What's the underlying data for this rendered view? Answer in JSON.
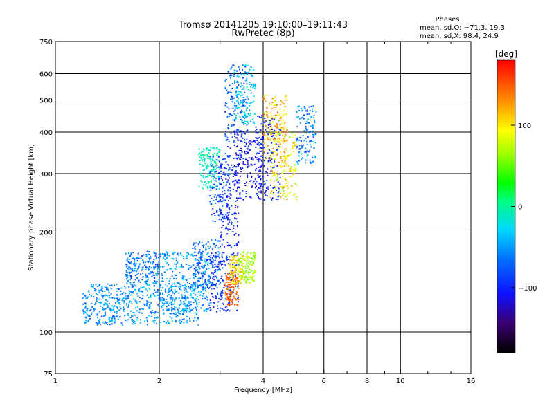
{
  "chart_data": {
    "type": "scatter",
    "title": "Tromsø 20141205 19:10:00–19:11:43",
    "subtitle": "RwPretec (8p)",
    "xlabel": "Frequency [MHz]",
    "ylabel": "Stationary phase Virtual Height [km]",
    "x_scale": "log",
    "y_scale": "log",
    "xlim": [
      1,
      16
    ],
    "ylim": [
      75,
      750
    ],
    "x_ticks": [
      1,
      2,
      4,
      6,
      8,
      10,
      16
    ],
    "x_tick_labels": [
      "1",
      "2",
      "4",
      "6",
      "8",
      "10",
      "16"
    ],
    "x_minor_ticks": [
      3,
      5,
      7,
      9,
      12,
      14
    ],
    "y_ticks": [
      75,
      100,
      200,
      300,
      400,
      500,
      600,
      750
    ],
    "y_tick_labels": [
      "75",
      "100",
      "200",
      "300",
      "400",
      "500",
      "600",
      "750"
    ],
    "grid": true,
    "stats": {
      "heading": "Phases",
      "line1": "mean, sd,O: −71.3, 19.3",
      "line2": "mean, sd,X:  98.4, 24.9"
    },
    "colorbar": {
      "label": "[deg]",
      "range": [
        -180,
        180
      ],
      "tick_values": [
        100,
        0,
        -100
      ],
      "tick_labels": [
        "100",
        "0",
        "−100"
      ]
    },
    "series": [
      {
        "clusters": [
          {
            "f": [
              1.2,
              2.6
            ],
            "h": [
              105,
              140
            ],
            "phase": [
              -78,
              -28
            ]
          },
          {
            "f": [
              1.6,
              2.0
            ],
            "h": [
              140,
              175
            ],
            "phase": [
              -88,
              -40
            ]
          },
          {
            "f": [
              2.0,
              2.8
            ],
            "h": [
              115,
              175
            ],
            "phase": [
              -72,
              -25
            ]
          },
          {
            "f": [
              2.5,
              3.0
            ],
            "h": [
              135,
              190
            ],
            "phase": [
              -95,
              -45
            ]
          },
          {
            "f": [
              2.8,
              3.4
            ],
            "h": [
              115,
              175
            ],
            "phase": [
              -110,
              -75
            ]
          },
          {
            "f": [
              2.6,
              3.0
            ],
            "h": [
              270,
              360
            ],
            "phase": [
              -30,
              10
            ]
          },
          {
            "f": [
              2.8,
              3.2
            ],
            "h": [
              215,
              340
            ],
            "phase": [
              -100,
              -60
            ]
          },
          {
            "f": [
              3.0,
              3.4
            ],
            "h": [
              180,
              320
            ],
            "phase": [
              -120,
              -80
            ]
          },
          {
            "f": [
              3.1,
              3.6
            ],
            "h": [
              330,
              640
            ],
            "phase": [
              -100,
              -55
            ]
          },
          {
            "f": [
              3.3,
              3.8
            ],
            "h": [
              420,
              640
            ],
            "phase": [
              -60,
              -10
            ]
          },
          {
            "f": [
              3.3,
              4.0
            ],
            "h": [
              250,
              410
            ],
            "phase": [
              -130,
              -90
            ]
          },
          {
            "f": [
              3.8,
              4.5
            ],
            "h": [
              250,
              450
            ],
            "phase": [
              -120,
              -80
            ]
          }
        ]
      },
      {
        "clusters": [
          {
            "f": [
              3.1,
              3.4
            ],
            "h": [
              120,
              150
            ],
            "phase": [
              130,
              160
            ]
          },
          {
            "f": [
              3.2,
              3.5
            ],
            "h": [
              140,
              170
            ],
            "phase": [
              80,
              130
            ]
          },
          {
            "f": [
              3.4,
              3.8
            ],
            "h": [
              140,
              175
            ],
            "phase": [
              50,
              90
            ]
          },
          {
            "f": [
              4.0,
              4.7
            ],
            "h": [
              330,
              520
            ],
            "phase": [
              80,
              150
            ]
          },
          {
            "f": [
              4.2,
              5.0
            ],
            "h": [
              250,
              400
            ],
            "phase": [
              60,
              140
            ]
          },
          {
            "f": [
              5.0,
              5.7
            ],
            "h": [
              320,
              480
            ],
            "phase": [
              -90,
              -30
            ]
          }
        ]
      }
    ]
  }
}
